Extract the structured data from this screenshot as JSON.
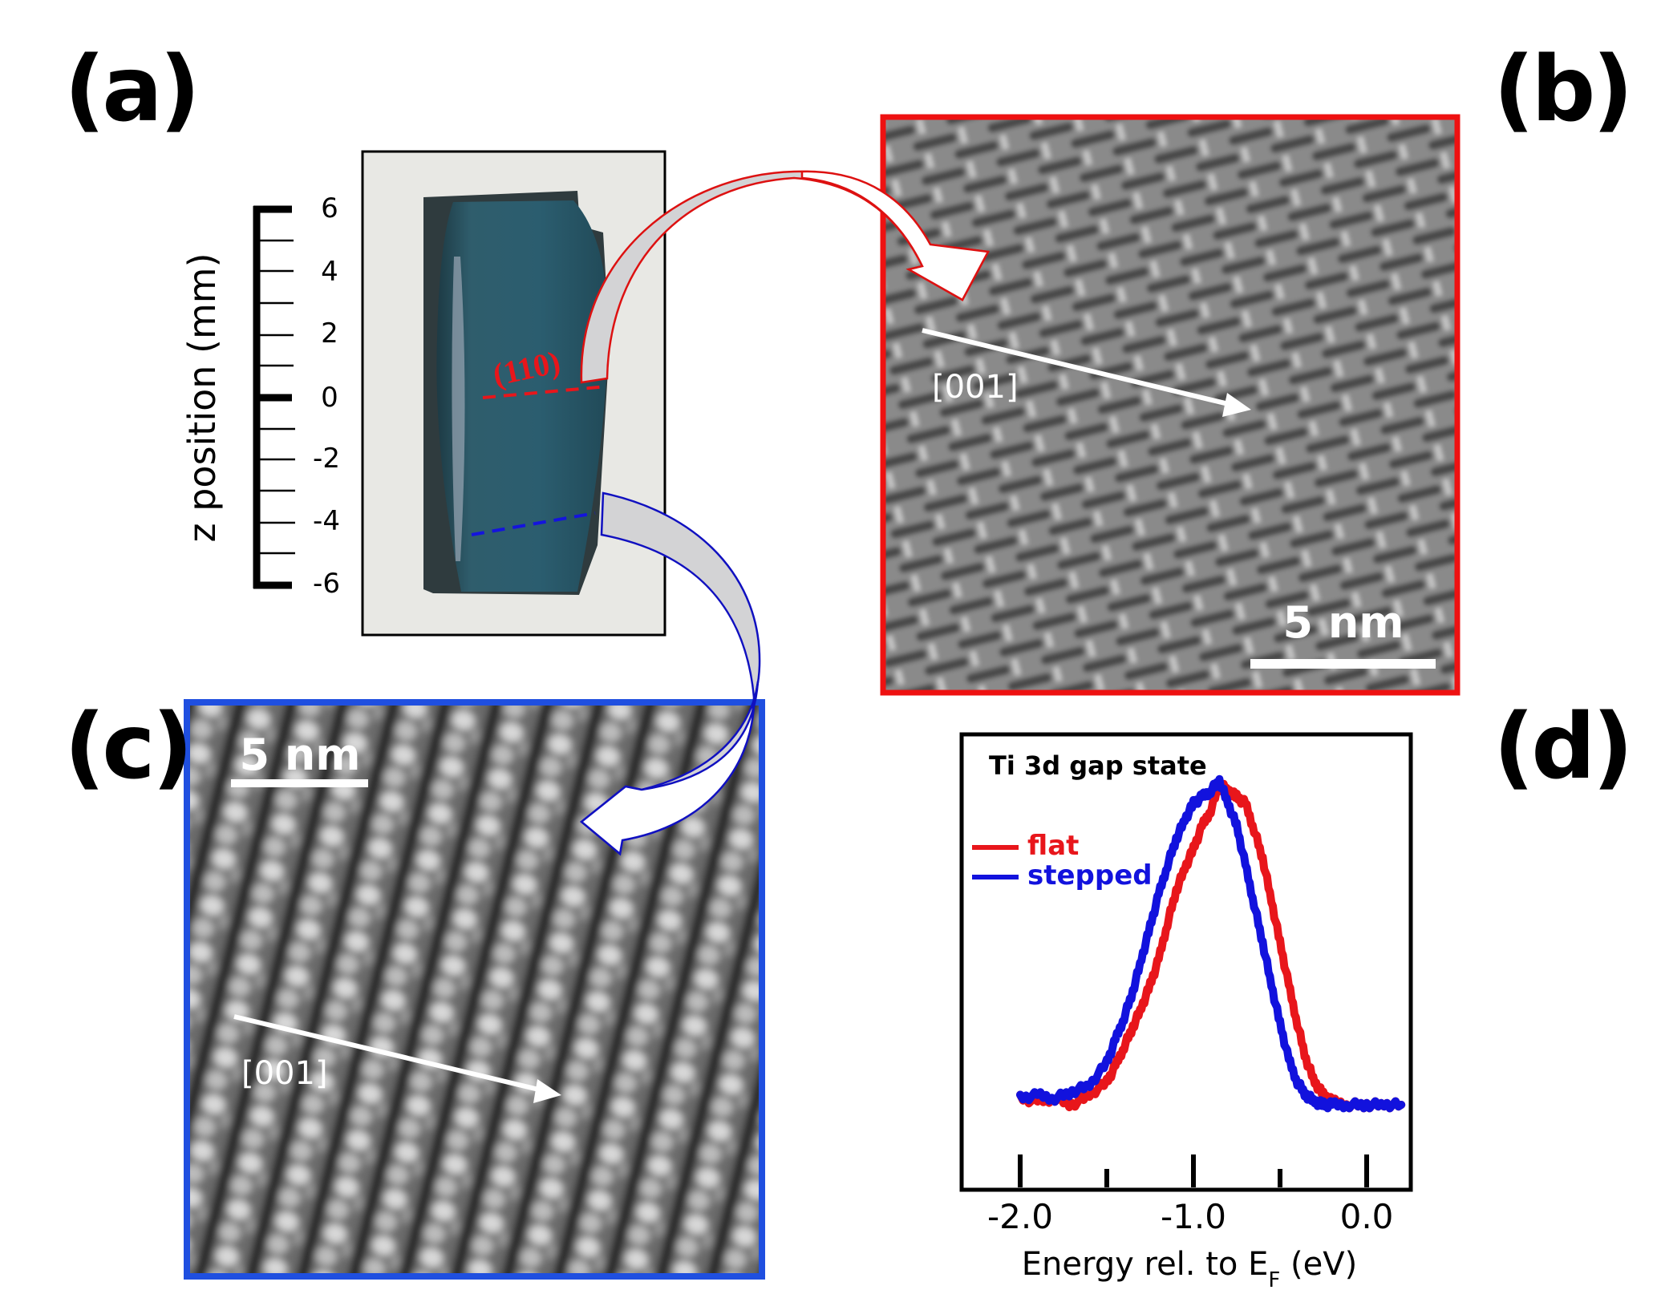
{
  "figure": {
    "panel_labels": {
      "a": "(a)",
      "b": "(b)",
      "c": "(c)",
      "d": "(d)"
    },
    "panel_a": {
      "scale_axis_label": "z position (mm)",
      "scale_ticks": [
        "6",
        "4",
        "2",
        "0",
        "-2",
        "-4",
        "-6"
      ],
      "facet_label": "(110)",
      "red_cut_line_color": "#e8161b",
      "blue_cut_line_color": "#1414dd"
    },
    "panel_b": {
      "direction_label": "[001]",
      "scale_bar_label": "5 nm",
      "border_color": "#ee1111"
    },
    "panel_c": {
      "direction_label": "[001]",
      "scale_bar_label": "5 nm",
      "border_color": "#1f4fe0"
    },
    "arrows": {
      "red_outline": "#dd1111",
      "blue_outline": "#1010c0",
      "fill": "#d3d3d5"
    }
  },
  "chart_data": {
    "type": "line",
    "title": "Ti 3d gap state",
    "xlabel": "Energy rel. to E_F (eV)",
    "xlabel_main": "Energy rel. to E",
    "xlabel_sub": "F",
    "xlabel_tail": " (eV)",
    "ylabel": "",
    "xlim": [
      -2.0,
      0.2
    ],
    "x_tick_labels": [
      "-2.0",
      "-1.0",
      "0.0"
    ],
    "x_major_ticks": [
      -2.0,
      -1.0,
      0.0
    ],
    "x_minor_ticks": [
      -1.5,
      -0.5
    ],
    "legend_position": "upper left",
    "grid": false,
    "series": [
      {
        "name": "flat",
        "color": "#e8161b",
        "x": [
          -2.0,
          -1.9,
          -1.8,
          -1.7,
          -1.6,
          -1.5,
          -1.45,
          -1.4,
          -1.35,
          -1.3,
          -1.25,
          -1.2,
          -1.15,
          -1.1,
          -1.05,
          -1.0,
          -0.95,
          -0.9,
          -0.85,
          -0.8,
          -0.75,
          -0.7,
          -0.65,
          -0.6,
          -0.55,
          -0.5,
          -0.45,
          -0.4,
          -0.35,
          -0.3,
          -0.25,
          -0.2,
          -0.1,
          0.0,
          0.1,
          0.2
        ],
        "y": [
          0.02,
          0.01,
          0.02,
          0.0,
          0.03,
          0.07,
          0.12,
          0.18,
          0.24,
          0.3,
          0.37,
          0.45,
          0.56,
          0.66,
          0.73,
          0.79,
          0.86,
          0.91,
          0.99,
          0.97,
          0.95,
          0.93,
          0.85,
          0.76,
          0.63,
          0.5,
          0.37,
          0.25,
          0.14,
          0.07,
          0.03,
          0.01,
          0.0,
          0.0,
          0.0,
          0.0
        ]
      },
      {
        "name": "stepped",
        "color": "#1212dd",
        "x": [
          -2.0,
          -1.9,
          -1.8,
          -1.7,
          -1.6,
          -1.5,
          -1.45,
          -1.4,
          -1.35,
          -1.3,
          -1.25,
          -1.2,
          -1.15,
          -1.1,
          -1.05,
          -1.0,
          -0.95,
          -0.9,
          -0.85,
          -0.8,
          -0.75,
          -0.7,
          -0.65,
          -0.6,
          -0.55,
          -0.5,
          -0.45,
          -0.4,
          -0.35,
          -0.3,
          -0.25,
          -0.2,
          -0.1,
          0.0,
          0.1,
          0.2
        ],
        "y": [
          0.02,
          0.03,
          0.02,
          0.04,
          0.06,
          0.13,
          0.2,
          0.27,
          0.35,
          0.45,
          0.55,
          0.65,
          0.74,
          0.82,
          0.88,
          0.93,
          0.95,
          0.97,
          1.0,
          0.93,
          0.86,
          0.74,
          0.62,
          0.5,
          0.37,
          0.25,
          0.14,
          0.07,
          0.03,
          0.01,
          0.0,
          0.0,
          0.0,
          0.0,
          0.0,
          0.0
        ]
      }
    ]
  }
}
